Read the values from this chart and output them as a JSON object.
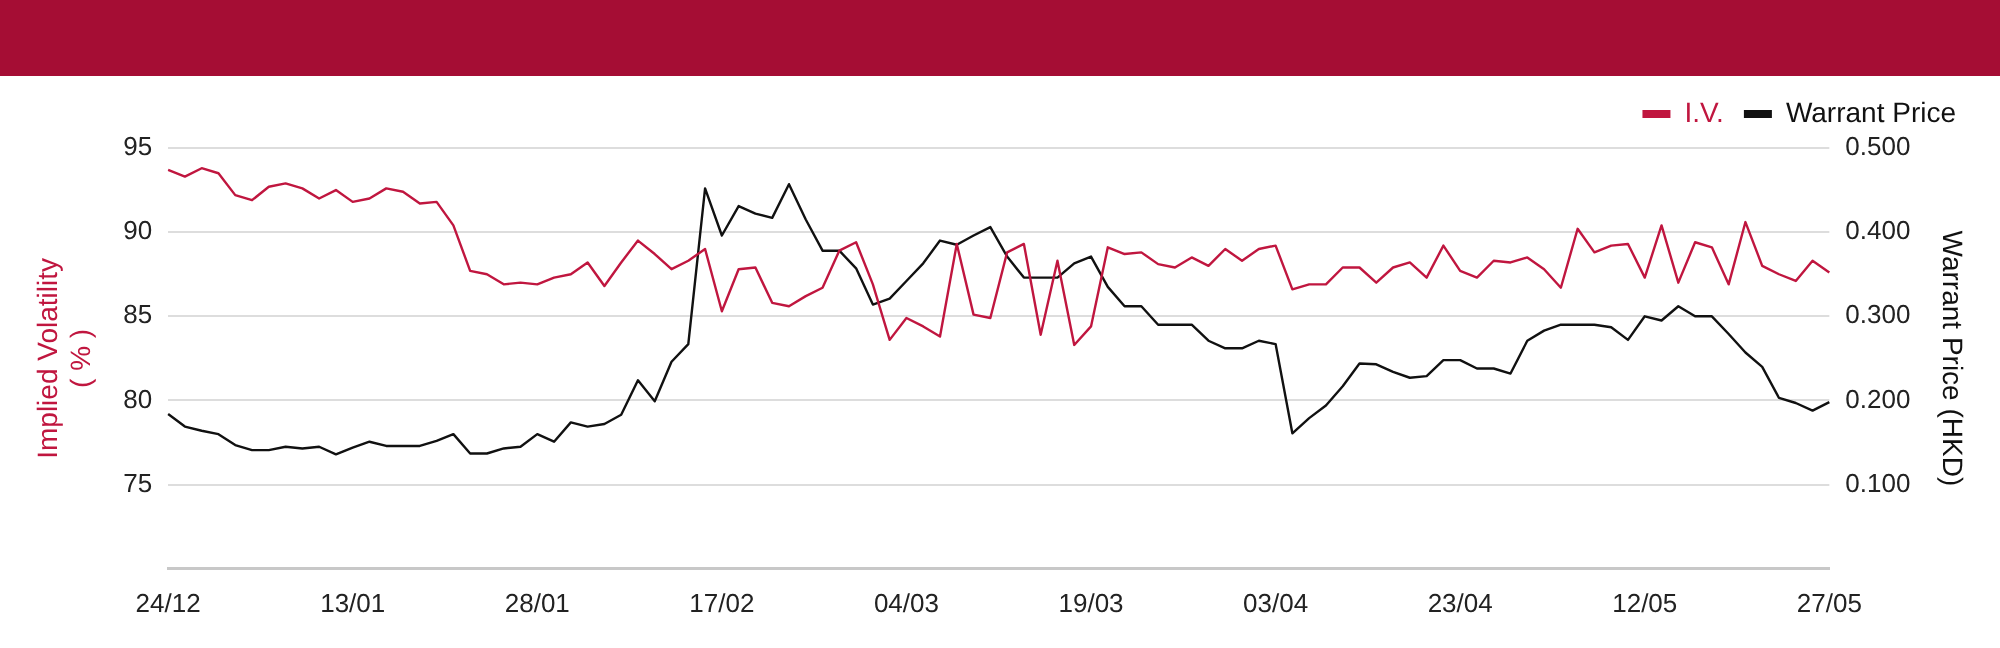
{
  "chart_data": {
    "type": "line",
    "categories": [
      "24/12",
      null,
      null,
      null,
      null,
      null,
      null,
      null,
      null,
      null,
      null,
      "13/01",
      null,
      null,
      null,
      null,
      null,
      null,
      null,
      null,
      null,
      null,
      "28/01",
      null,
      null,
      null,
      null,
      null,
      null,
      null,
      null,
      null,
      null,
      "17/02",
      null,
      null,
      null,
      null,
      null,
      null,
      null,
      null,
      null,
      null,
      "04/03",
      null,
      null,
      null,
      null,
      null,
      null,
      null,
      null,
      null,
      null,
      "19/03",
      null,
      null,
      null,
      null,
      null,
      null,
      null,
      null,
      null,
      null,
      "03/04",
      null,
      null,
      null,
      null,
      null,
      null,
      null,
      null,
      null,
      null,
      "23/04",
      null,
      null,
      null,
      null,
      null,
      null,
      null,
      null,
      null,
      null,
      "12/05",
      null,
      null,
      null,
      null,
      null,
      null,
      null,
      null,
      null,
      null,
      "27/05"
    ],
    "series": [
      {
        "name": "I.V.",
        "color": "#c0163f",
        "axis": "y",
        "values": [
          93.7,
          93.3,
          93.8,
          93.5,
          92.2,
          91.9,
          92.7,
          92.9,
          92.6,
          92.0,
          92.5,
          91.8,
          92.0,
          92.6,
          92.4,
          91.7,
          91.8,
          90.4,
          87.7,
          87.5,
          86.9,
          87.0,
          86.9,
          87.3,
          87.5,
          88.2,
          86.8,
          88.2,
          89.5,
          88.7,
          87.8,
          88.3,
          89.0,
          85.3,
          87.8,
          87.9,
          85.8,
          85.6,
          86.2,
          86.7,
          88.9,
          89.4,
          86.9,
          83.6,
          84.9,
          84.4,
          83.8,
          89.3,
          85.1,
          84.9,
          88.8,
          89.3,
          83.9,
          88.3,
          83.3,
          84.4,
          89.1,
          88.7,
          88.8,
          88.1,
          87.9,
          88.5,
          88.0,
          89.0,
          88.3,
          89.0,
          89.2,
          86.6,
          86.9,
          86.9,
          87.9,
          87.9,
          87.0,
          87.9,
          88.2,
          87.3,
          89.2,
          87.7,
          87.3,
          88.3,
          88.2,
          88.5,
          87.8,
          86.7,
          90.2,
          88.8,
          89.2,
          89.3,
          87.3,
          90.4,
          87.0,
          89.4,
          89.1,
          86.9,
          90.6,
          88.0,
          87.5,
          87.1,
          88.3,
          87.6
        ]
      },
      {
        "name": "Warrant Price",
        "color": "#111111",
        "axis": "y2",
        "values": [
          0.184,
          0.169,
          0.164,
          0.16,
          0.147,
          0.141,
          0.141,
          0.145,
          0.143,
          0.145,
          0.136,
          0.144,
          0.151,
          0.146,
          0.146,
          0.146,
          0.152,
          0.16,
          0.137,
          0.137,
          0.143,
          0.145,
          0.16,
          0.151,
          0.174,
          0.169,
          0.172,
          0.183,
          0.224,
          0.199,
          0.246,
          0.267,
          0.452,
          0.396,
          0.431,
          0.422,
          0.417,
          0.457,
          0.415,
          0.378,
          0.378,
          0.357,
          0.314,
          0.321,
          0.342,
          0.363,
          0.39,
          0.385,
          0.396,
          0.406,
          0.371,
          0.346,
          0.346,
          0.346,
          0.363,
          0.371,
          0.335,
          0.312,
          0.312,
          0.29,
          0.29,
          0.29,
          0.271,
          0.262,
          0.262,
          0.271,
          0.267,
          0.161,
          0.179,
          0.194,
          0.217,
          0.244,
          0.243,
          0.234,
          0.227,
          0.229,
          0.248,
          0.248,
          0.238,
          0.238,
          0.232,
          0.271,
          0.283,
          0.29,
          0.29,
          0.29,
          0.287,
          0.272,
          0.3,
          0.295,
          0.312,
          0.3,
          0.3,
          0.279,
          0.257,
          0.24,
          0.203,
          0.197,
          0.188,
          0.198
        ]
      }
    ],
    "ylabel": "Implied Volatility\n( % )",
    "y2label": "Warrant Price (HKD)",
    "ylim": [
      70,
      95
    ],
    "yticks": [
      75,
      80,
      85,
      90,
      95
    ],
    "y2lim": [
      0,
      0.5
    ],
    "y2ticks": [
      {
        "value": 0.1,
        "label": "0.100"
      },
      {
        "value": 0.2,
        "label": "0.200"
      },
      {
        "value": 0.3,
        "label": "0.300"
      },
      {
        "value": 0.4,
        "label": "0.400"
      },
      {
        "value": 0.5,
        "label": "0.500"
      }
    ],
    "grid": "y",
    "legend": "top right",
    "marker": "none"
  }
}
